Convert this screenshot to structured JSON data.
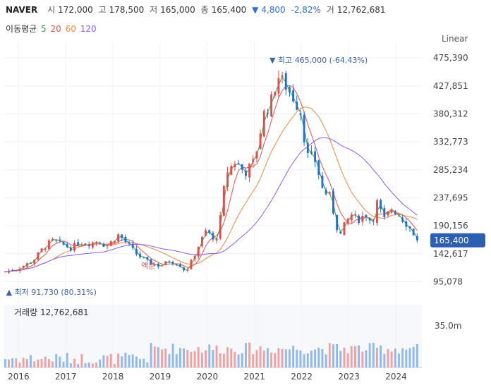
{
  "header": {
    "name": "NAVER",
    "open_label": "시",
    "open": "172,000",
    "high_label": "고",
    "high": "178,500",
    "low_label": "저",
    "low": "165,000",
    "close_label": "종",
    "close": "165,400",
    "change_arrow": "▼",
    "change": "4,800",
    "change_pct": "-2,82%",
    "volume_label": "거",
    "volume": "12,762,681"
  },
  "moving_average": {
    "label": "이동평균",
    "periods": [
      {
        "value": "5",
        "color": "#2ea63a"
      },
      {
        "value": "20",
        "color": "#e8544e"
      },
      {
        "value": "60",
        "color": "#f0883e"
      },
      {
        "value": "120",
        "color": "#8b5cf6"
      }
    ]
  },
  "scale_mode": "Linear",
  "colors": {
    "up": "#e8494a",
    "down": "#1f6fd6",
    "volume_up": "#f0a0a0",
    "volume_down": "#8fb8ee",
    "ma5": "#2ea63a",
    "ma20": "#e8544e",
    "ma60": "#f0883e",
    "ma120": "#8b5cf6",
    "current_tag": "#2d5fb0"
  },
  "chart_data": {
    "type": "candlestick",
    "y_ticks": [
      "475,390",
      "427,851",
      "380,312",
      "332,773",
      "285,234",
      "237,695",
      "190,156",
      "142,617",
      "95,078"
    ],
    "y_tick_values": [
      475390,
      427851,
      380312,
      332773,
      285234,
      237695,
      190156,
      142617,
      95078
    ],
    "ylim": [
      80000,
      490000
    ],
    "x_ticks": [
      "2016",
      "2017",
      "2018",
      "2019",
      "2020",
      "2021",
      "2022",
      "2023",
      "2024"
    ],
    "x_tick_years": [
      2016,
      2017,
      2018,
      2019,
      2020,
      2021,
      2022,
      2023,
      2024
    ],
    "xlim": [
      2015.7,
      2024.55
    ],
    "current_price": "165,400",
    "current_value": 165400,
    "max_annotation": {
      "arrow": "▼",
      "label": "최고",
      "value": "465,000 (-64,43%)",
      "x": 2021.47,
      "y": 465000
    },
    "min_annotation": {
      "arrow": "▲",
      "label": "최저",
      "value": "91,730 (80,31%)",
      "x": 2015.77,
      "y": 91730
    },
    "event_marker": {
      "text": "액분",
      "x": 2018.75,
      "y": 130000
    },
    "close_anchors": [
      [
        2015.72,
        112000
      ],
      [
        2016.0,
        118000
      ],
      [
        2016.3,
        130000
      ],
      [
        2016.5,
        150000
      ],
      [
        2016.7,
        165000
      ],
      [
        2016.9,
        160000
      ],
      [
        2017.1,
        152000
      ],
      [
        2017.3,
        162000
      ],
      [
        2017.5,
        160000
      ],
      [
        2017.7,
        165000
      ],
      [
        2017.85,
        155000
      ],
      [
        2018.0,
        165000
      ],
      [
        2018.12,
        175000
      ],
      [
        2018.3,
        160000
      ],
      [
        2018.5,
        142000
      ],
      [
        2018.75,
        128000
      ],
      [
        2019.0,
        122000
      ],
      [
        2019.2,
        130000
      ],
      [
        2019.4,
        125000
      ],
      [
        2019.55,
        112000
      ],
      [
        2019.7,
        135000
      ],
      [
        2019.85,
        162000
      ],
      [
        2020.0,
        185000
      ],
      [
        2020.15,
        160000
      ],
      [
        2020.25,
        185000
      ],
      [
        2020.4,
        280000
      ],
      [
        2020.6,
        300000
      ],
      [
        2020.8,
        280000
      ],
      [
        2021.0,
        300000
      ],
      [
        2021.2,
        380000
      ],
      [
        2021.35,
        400000
      ],
      [
        2021.5,
        445000
      ],
      [
        2021.65,
        430000
      ],
      [
        2021.85,
        405000
      ],
      [
        2022.0,
        380000
      ],
      [
        2022.1,
        310000
      ],
      [
        2022.3,
        300000
      ],
      [
        2022.45,
        250000
      ],
      [
        2022.6,
        240000
      ],
      [
        2022.8,
        170000
      ],
      [
        2022.9,
        190000
      ],
      [
        2023.05,
        210000
      ],
      [
        2023.2,
        200000
      ],
      [
        2023.35,
        210000
      ],
      [
        2023.5,
        195000
      ],
      [
        2023.6,
        230000
      ],
      [
        2023.75,
        200000
      ],
      [
        2023.9,
        220000
      ],
      [
        2024.05,
        210000
      ],
      [
        2024.2,
        195000
      ],
      [
        2024.35,
        180000
      ],
      [
        2024.45,
        165400
      ]
    ],
    "volume": {
      "label": "거래량",
      "value": "12,762,681",
      "max_tick": "35.0m",
      "max_value": 35000000
    }
  }
}
